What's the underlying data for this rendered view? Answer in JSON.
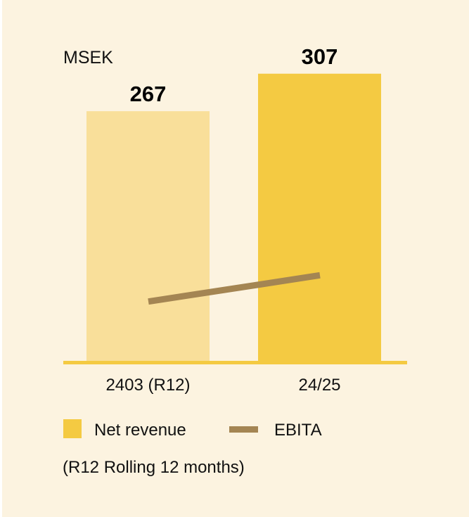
{
  "chart_data": {
    "type": "bar",
    "unit_label": "MSEK",
    "categories": [
      "2403 (R12)",
      "24/25"
    ],
    "series": [
      {
        "name": "Net revenue",
        "type": "bar",
        "values": [
          267,
          307
        ],
        "colors": [
          "#f9df9a",
          "#f4ca42"
        ],
        "value_labels": [
          "267",
          "307"
        ]
      },
      {
        "name": "EBITA",
        "type": "line",
        "values": [
          64,
          92
        ],
        "color": "#a48553"
      }
    ],
    "ylim": [
      0,
      350
    ],
    "grid": false,
    "legend": {
      "placement": "bottom-left",
      "entries": [
        "Net revenue",
        "EBITA"
      ]
    },
    "footnote": "(R12 Rolling 12 months)",
    "axis_color": "#f4ca42",
    "background": "#fcf3e0"
  }
}
